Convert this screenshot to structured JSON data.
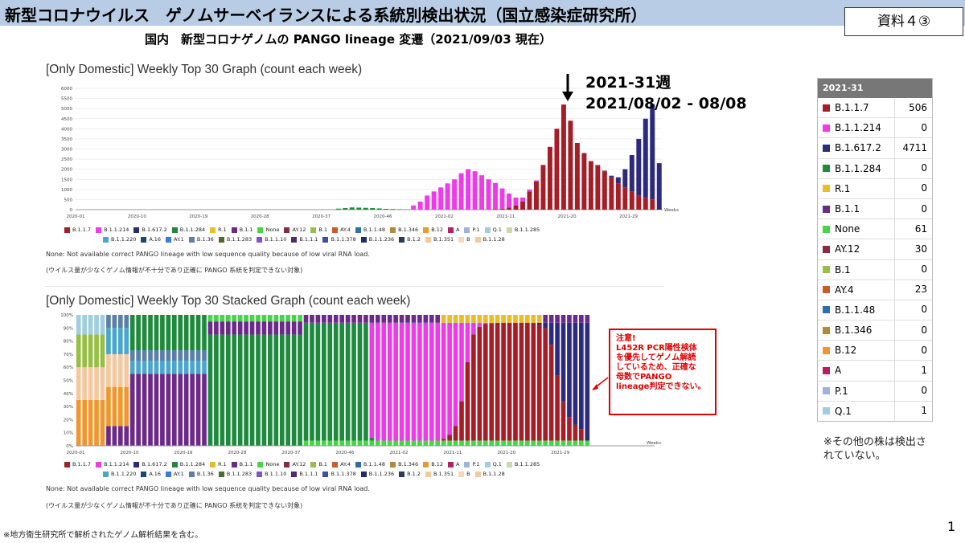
{
  "header": {
    "title": "新型コロナウイルス　ゲノムサーベイランスによる系統別検出状況（国立感染症研究所）",
    "doc_label": "資料４③"
  },
  "subtitle": "国内　新型コロナゲノムの PANGO lineage 変遷（2021/09/03 現在）",
  "annotation": {
    "week": "2021-31週",
    "range": "2021/08/02 - 08/08"
  },
  "warning_box": [
    "注意!",
    "L452R PCR陽性検体",
    "を優先してゲノム解読",
    "しているため、正確な",
    "母数でPANGO",
    "lineage判定できない。"
  ],
  "notes": {
    "en": "None: Not available correct PANGO lineage with low sequence quality because of low viral RNA load.",
    "ja": "(ウイルス量が少なくゲノム情報が不十分であり正確に PANGO 系統を判定できない対象)"
  },
  "footnote": "※地方衛生研究所で解析されたゲノム解析結果を含む。",
  "other_note": "※その他の株は検出されていない。",
  "page_number": "1",
  "legend": [
    {
      "name": "B.1.1.7",
      "color": "#a51e27"
    },
    {
      "name": "B.1.1.214",
      "color": "#ee3ae8"
    },
    {
      "name": "B.1.617.2",
      "color": "#2c2a7c"
    },
    {
      "name": "B.1.1.284",
      "color": "#1f8a3d"
    },
    {
      "name": "R.1",
      "color": "#e7bd2a"
    },
    {
      "name": "B.1.1",
      "color": "#6b2a8a"
    },
    {
      "name": "None",
      "color": "#45d646"
    },
    {
      "name": "AY.12",
      "color": "#8e2a3d"
    },
    {
      "name": "B.1",
      "color": "#98bf45"
    },
    {
      "name": "AY.4",
      "color": "#cf5a26"
    },
    {
      "name": "B.1.1.48",
      "color": "#2c6fae"
    },
    {
      "name": "B.1.346",
      "color": "#b08a3a"
    },
    {
      "name": "B.12",
      "color": "#f0962e"
    },
    {
      "name": "A",
      "color": "#b5215e"
    },
    {
      "name": "P.1",
      "color": "#9fb3d8"
    },
    {
      "name": "Q.1",
      "color": "#9ecee0"
    },
    {
      "name": "B.1.1.285",
      "color": "#c9d9a8"
    },
    {
      "name": "B.1.1.220",
      "color": "#4aa5cf"
    },
    {
      "name": "A.16",
      "color": "#174a6b"
    },
    {
      "name": "AY.1",
      "color": "#3a7cd8"
    },
    {
      "name": "B.1.36",
      "color": "#5b7fa8"
    },
    {
      "name": "B.1.1.283",
      "color": "#4e6b2e"
    },
    {
      "name": "B.1.1.10",
      "color": "#7e55c6"
    },
    {
      "name": "B.1.1.1",
      "color": "#4b2e6f"
    },
    {
      "name": "B.1.1.378",
      "color": "#3f4fa0"
    },
    {
      "name": "B.1.1.236",
      "color": "#1f2b6e"
    },
    {
      "name": "B.1.2",
      "color": "#2b3a55"
    },
    {
      "name": "B.1.351",
      "color": "#f5c99a"
    },
    {
      "name": "B",
      "color": "#f3d9b8"
    },
    {
      "name": "B.1.1.28",
      "color": "#f3c8a0"
    }
  ],
  "table": {
    "header": "2021-31",
    "rows": [
      {
        "name": "B.1.1.7",
        "count": "506",
        "color": "#a51e27"
      },
      {
        "name": "B.1.1.214",
        "count": "0",
        "color": "#ee3ae8"
      },
      {
        "name": "B.1.617.2",
        "count": "4711",
        "color": "#2c2a7c"
      },
      {
        "name": "B.1.1.284",
        "count": "0",
        "color": "#1f8a3d"
      },
      {
        "name": "R.1",
        "count": "0",
        "color": "#e7bd2a"
      },
      {
        "name": "B.1.1",
        "count": "0",
        "color": "#6b2a8a"
      },
      {
        "name": "None",
        "count": "61",
        "color": "#45d646"
      },
      {
        "name": "AY.12",
        "count": "30",
        "color": "#8e2a3d"
      },
      {
        "name": "B.1",
        "count": "0",
        "color": "#98bf45"
      },
      {
        "name": "AY.4",
        "count": "23",
        "color": "#cf5a26"
      },
      {
        "name": "B.1.1.48",
        "count": "0",
        "color": "#2c6fae"
      },
      {
        "name": "B.1.346",
        "count": "0",
        "color": "#b08a3a"
      },
      {
        "name": "B.12",
        "count": "0",
        "color": "#f0962e"
      },
      {
        "name": "A",
        "count": "1",
        "color": "#b5215e"
      },
      {
        "name": "P.1",
        "count": "0",
        "color": "#9fb3d8"
      },
      {
        "name": "Q.1",
        "count": "1",
        "color": "#9ecee0"
      }
    ]
  },
  "chart_data": [
    {
      "type": "bar",
      "title": "[Only Domestic] Weekly Top 30 Graph (count each week)",
      "xlabel": "Weeks",
      "ylim": [
        0,
        6000
      ],
      "yticks": [
        0,
        500,
        1000,
        1500,
        2000,
        2500,
        3000,
        3500,
        4000,
        4500,
        5000,
        5500,
        6000
      ],
      "xticks": [
        "2020-01",
        "2020-10",
        "2020-19",
        "2020-28",
        "2020-37",
        "2020-46",
        "2021-02",
        "2021-11",
        "2021-20",
        "2021-29"
      ],
      "weeks": 86,
      "series": [
        {
          "name": "B.1.1.284",
          "values": [
            0,
            0,
            0,
            0,
            0,
            0,
            0,
            0,
            0,
            0,
            0,
            0,
            0,
            0,
            0,
            0,
            0,
            0,
            0,
            0,
            0,
            0,
            0,
            0,
            0,
            0,
            0,
            0,
            0,
            0,
            0,
            0,
            0,
            0,
            0,
            0,
            0,
            0,
            50,
            80,
            110,
            100,
            90,
            80,
            60,
            40,
            30,
            20,
            10,
            5,
            0,
            0,
            0,
            0,
            0,
            0,
            0,
            0,
            0,
            0,
            0,
            0,
            0,
            0,
            0,
            0,
            0,
            0,
            0,
            0,
            0,
            0,
            0,
            0,
            0,
            0,
            0,
            0,
            0,
            0,
            0,
            0,
            0,
            0,
            0,
            0
          ]
        },
        {
          "name": "B.1.1.7",
          "values": [
            0,
            0,
            0,
            0,
            0,
            0,
            0,
            0,
            0,
            0,
            0,
            0,
            0,
            0,
            0,
            0,
            0,
            0,
            0,
            0,
            0,
            0,
            0,
            0,
            0,
            0,
            0,
            0,
            0,
            0,
            0,
            0,
            0,
            0,
            0,
            0,
            0,
            0,
            0,
            0,
            0,
            0,
            0,
            0,
            0,
            0,
            0,
            0,
            0,
            0,
            0,
            0,
            0,
            0,
            0,
            0,
            0,
            0,
            0,
            0,
            0,
            20,
            50,
            100,
            200,
            400,
            900,
            1400,
            2200,
            3100,
            4000,
            5200,
            4400,
            3300,
            2800,
            2400,
            2200,
            1900,
            1600,
            1300,
            1100,
            900,
            700,
            600,
            506,
            0
          ]
        },
        {
          "name": "B.1.617.2",
          "values": [
            0,
            0,
            0,
            0,
            0,
            0,
            0,
            0,
            0,
            0,
            0,
            0,
            0,
            0,
            0,
            0,
            0,
            0,
            0,
            0,
            0,
            0,
            0,
            0,
            0,
            0,
            0,
            0,
            0,
            0,
            0,
            0,
            0,
            0,
            0,
            0,
            0,
            0,
            0,
            0,
            0,
            0,
            0,
            0,
            0,
            0,
            0,
            0,
            0,
            0,
            0,
            0,
            0,
            0,
            0,
            0,
            0,
            0,
            0,
            0,
            0,
            0,
            0,
            0,
            0,
            0,
            0,
            0,
            0,
            0,
            0,
            0,
            0,
            0,
            0,
            0,
            10,
            30,
            80,
            300,
            900,
            1800,
            2800,
            3900,
            4711,
            2300
          ]
        },
        {
          "name": "B.1.1.214",
          "values": [
            0,
            0,
            0,
            0,
            0,
            0,
            0,
            0,
            0,
            0,
            0,
            0,
            0,
            0,
            0,
            0,
            0,
            0,
            0,
            0,
            0,
            0,
            0,
            0,
            0,
            0,
            0,
            0,
            0,
            0,
            0,
            0,
            0,
            0,
            0,
            0,
            0,
            0,
            0,
            0,
            0,
            0,
            0,
            0,
            0,
            0,
            0,
            0,
            0,
            200,
            400,
            700,
            900,
            1100,
            1300,
            1500,
            1800,
            2000,
            1900,
            1700,
            1500,
            1300,
            1000,
            700,
            400,
            200,
            100,
            50,
            20,
            10,
            5,
            0,
            0,
            0,
            0,
            0,
            0,
            0,
            0,
            0,
            0,
            0,
            0,
            0,
            0,
            0
          ]
        }
      ],
      "notes": "Stacked weekly counts; peak ~5900 around 2021-16, second peak ~5300 at 2021-31"
    },
    {
      "type": "bar",
      "title": "[Only Domestic] Weekly Top 30 Stacked Graph (count each week)",
      "xlabel": "Weeks",
      "stacked_percent": true,
      "ylim": [
        0,
        100
      ],
      "yticks": [
        "0%",
        "10%",
        "20%",
        "30%",
        "40%",
        "50%",
        "60%",
        "70%",
        "80%",
        "90%",
        "100%"
      ],
      "xticks": [
        "2020-01",
        "2020-10",
        "2020-19",
        "2020-28",
        "2020-37",
        "2020-46",
        "2021-02",
        "2021-11",
        "2021-20",
        "2021-29"
      ],
      "weeks": 86
    }
  ]
}
